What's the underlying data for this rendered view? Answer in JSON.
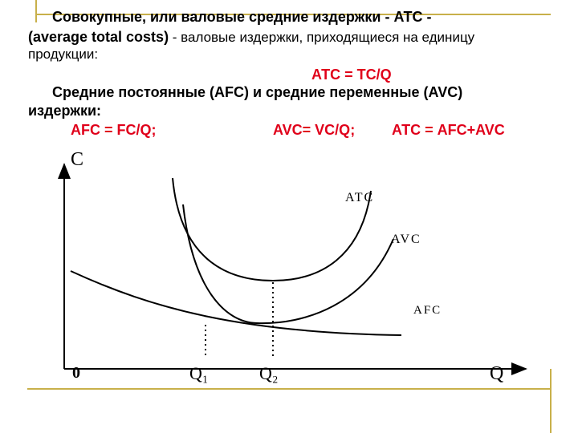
{
  "text": {
    "atc_definition": {
      "line1": "Совокупные, или валовые средние издержки - АТС -",
      "term": "(average total costs)",
      "line2_rest": " - валовые издержки, приходящиеся на единицу",
      "line3": "продукции:"
    },
    "atc_formula": "АТС = ТС/Q",
    "afc_avc_intro": {
      "line1": "Средние постоянные (AFC) и средние переменные (AVC)",
      "line2": "издержки:"
    },
    "formulas": [
      "AFC = FC/Q;",
      "AVC= VC/Q;",
      "АТС = AFC+AVC"
    ]
  },
  "diagram": {
    "y_axis_label": "C",
    "x_axis_label": "Q",
    "origin": "0",
    "curves": [
      "ATC",
      "AVC",
      "AFC"
    ],
    "x_marks": [
      "Q₁",
      "Q₂"
    ]
  }
}
